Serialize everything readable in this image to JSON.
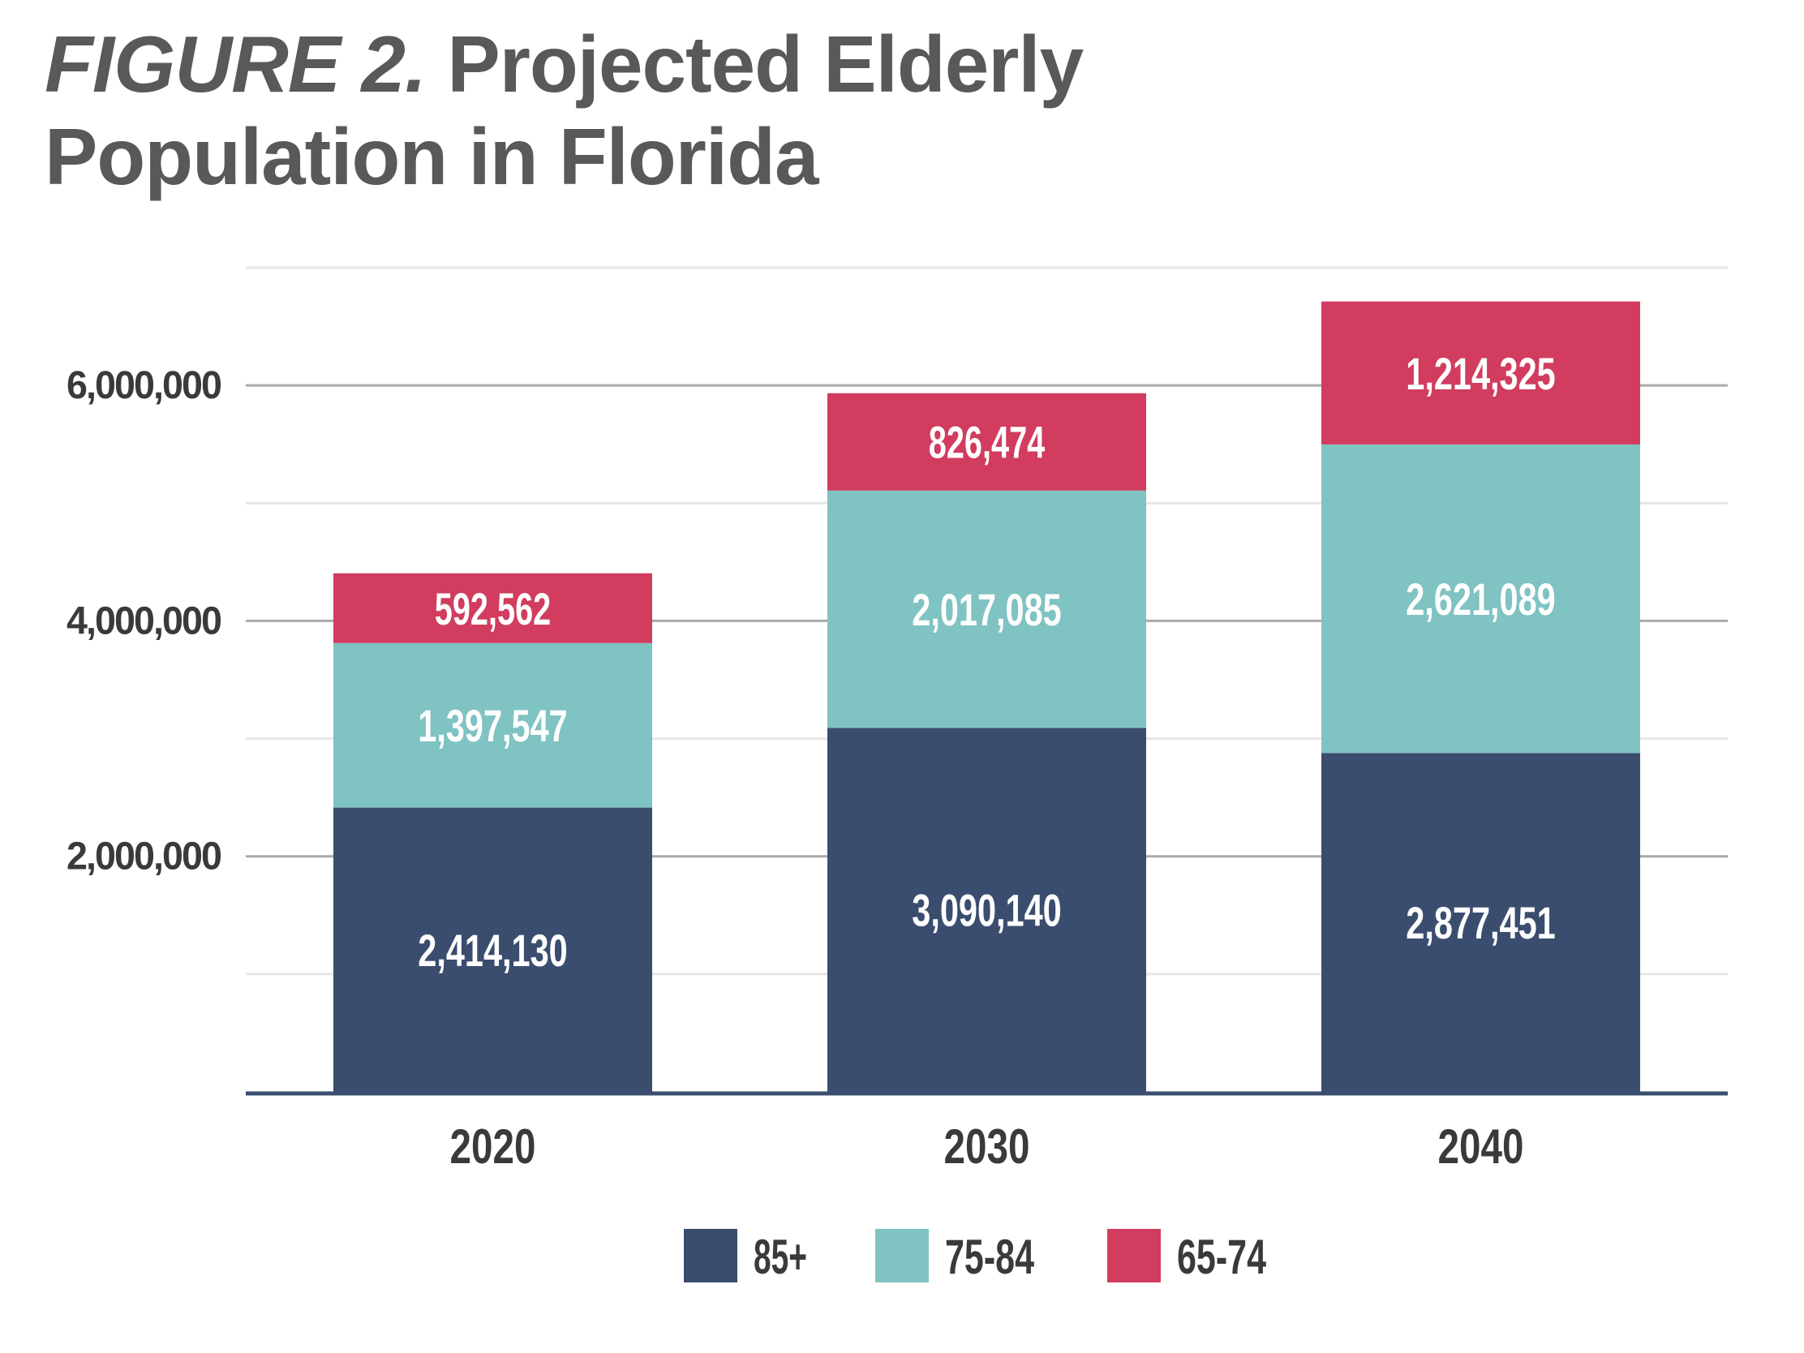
{
  "title": {
    "prefix": "FIGURE 2.",
    "line1": "Projected Elderly",
    "line2": "Population in Florida"
  },
  "chart_data": {
    "type": "bar",
    "stacked": true,
    "title": "FIGURE 2. Projected Elderly Population in Florida",
    "xlabel": "",
    "ylabel": "",
    "categories": [
      "2020",
      "2030",
      "2040"
    ],
    "series": [
      {
        "name": "85+",
        "values": [
          2414130,
          3090140,
          2877451
        ],
        "labels": [
          "2,414,130",
          "3,090,140",
          "2,877,451"
        ],
        "color": "#3b4d6f"
      },
      {
        "name": "75-84",
        "values": [
          1397547,
          2017085,
          2621089
        ],
        "labels": [
          "1,397,547",
          "2,017,085",
          "2,621,089"
        ],
        "color": "#7fc3c2"
      },
      {
        "name": "65-74",
        "values": [
          592562,
          826474,
          1214325
        ],
        "labels": [
          "592,562",
          "826,474",
          "1,214,325"
        ],
        "color": "#d13c5f"
      }
    ],
    "ylim": [
      0,
      7000000
    ],
    "yticks": [
      2000000,
      4000000,
      6000000
    ],
    "ytick_labels": [
      "2,000,000",
      "4,000,000",
      "6,000,000"
    ],
    "grid": true,
    "legend": "bottom-center"
  }
}
